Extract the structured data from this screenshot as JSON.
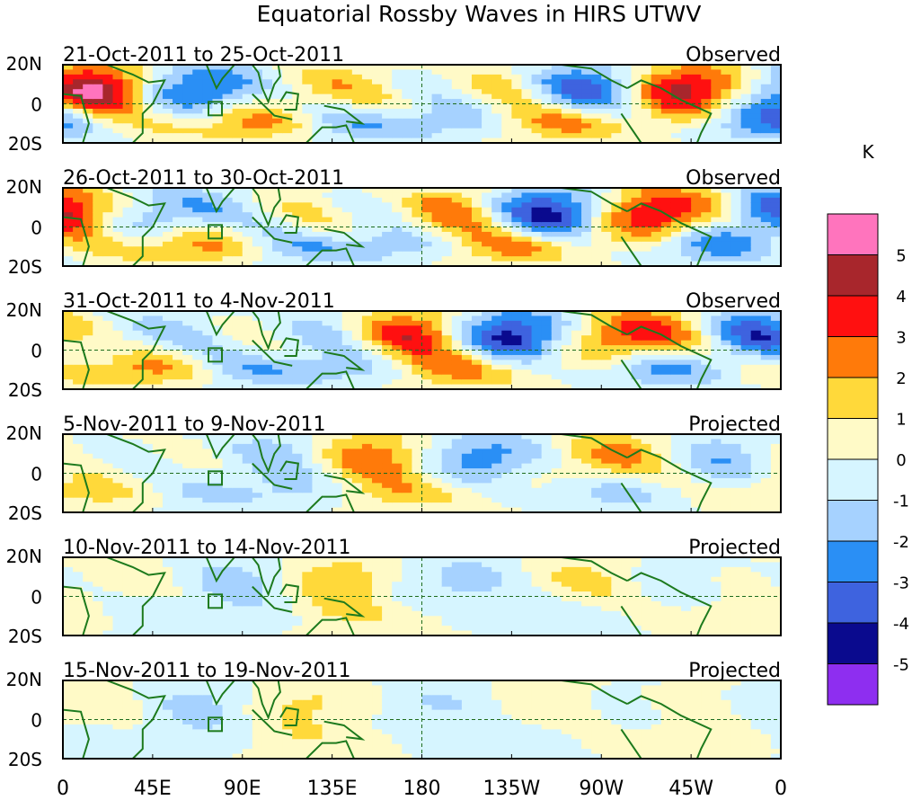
{
  "chart_data": {
    "type": "heatmap",
    "title": "Equatorial Rossby Waves in HIRS UTWV",
    "unit_label": "K",
    "lon_ticks": [
      "0",
      "45E",
      "90E",
      "135E",
      "180",
      "135W",
      "90W",
      "45W",
      "0"
    ],
    "lat_ticks": [
      "20N",
      "0",
      "20S"
    ],
    "lat_range": [
      -20,
      20
    ],
    "lon_range": [
      0,
      360
    ],
    "colorbar": {
      "colors": [
        "#ff74bd",
        "#a8262c",
        "#ff1010",
        "#ff7a0a",
        "#ffd93a",
        "#fffac7",
        "#d6f5ff",
        "#a6d2ff",
        "#2a8ff5",
        "#3e63df",
        "#0a0a8e",
        "#8e2ef0"
      ],
      "labels": [
        "5",
        "4",
        "3",
        "2",
        "1",
        "0",
        "-1",
        "-2",
        "-3",
        "-4",
        "-5"
      ]
    },
    "panels": [
      {
        "dates": "21-Oct-2011 to 25-Oct-2011",
        "kind": "Observed",
        "amp": 1.0
      },
      {
        "dates": "26-Oct-2011 to 30-Oct-2011",
        "kind": "Observed",
        "amp": 1.0
      },
      {
        "dates": "31-Oct-2011 to 4-Nov-2011",
        "kind": "Observed",
        "amp": 0.95
      },
      {
        "dates": "5-Nov-2011 to 9-Nov-2011",
        "kind": "Projected",
        "amp": 0.6
      },
      {
        "dates": "10-Nov-2011 to 14-Nov-2011",
        "kind": "Projected",
        "amp": 0.38
      },
      {
        "dates": "15-Nov-2011 to 19-Nov-2011",
        "kind": "Projected",
        "amp": 0.28
      }
    ]
  }
}
